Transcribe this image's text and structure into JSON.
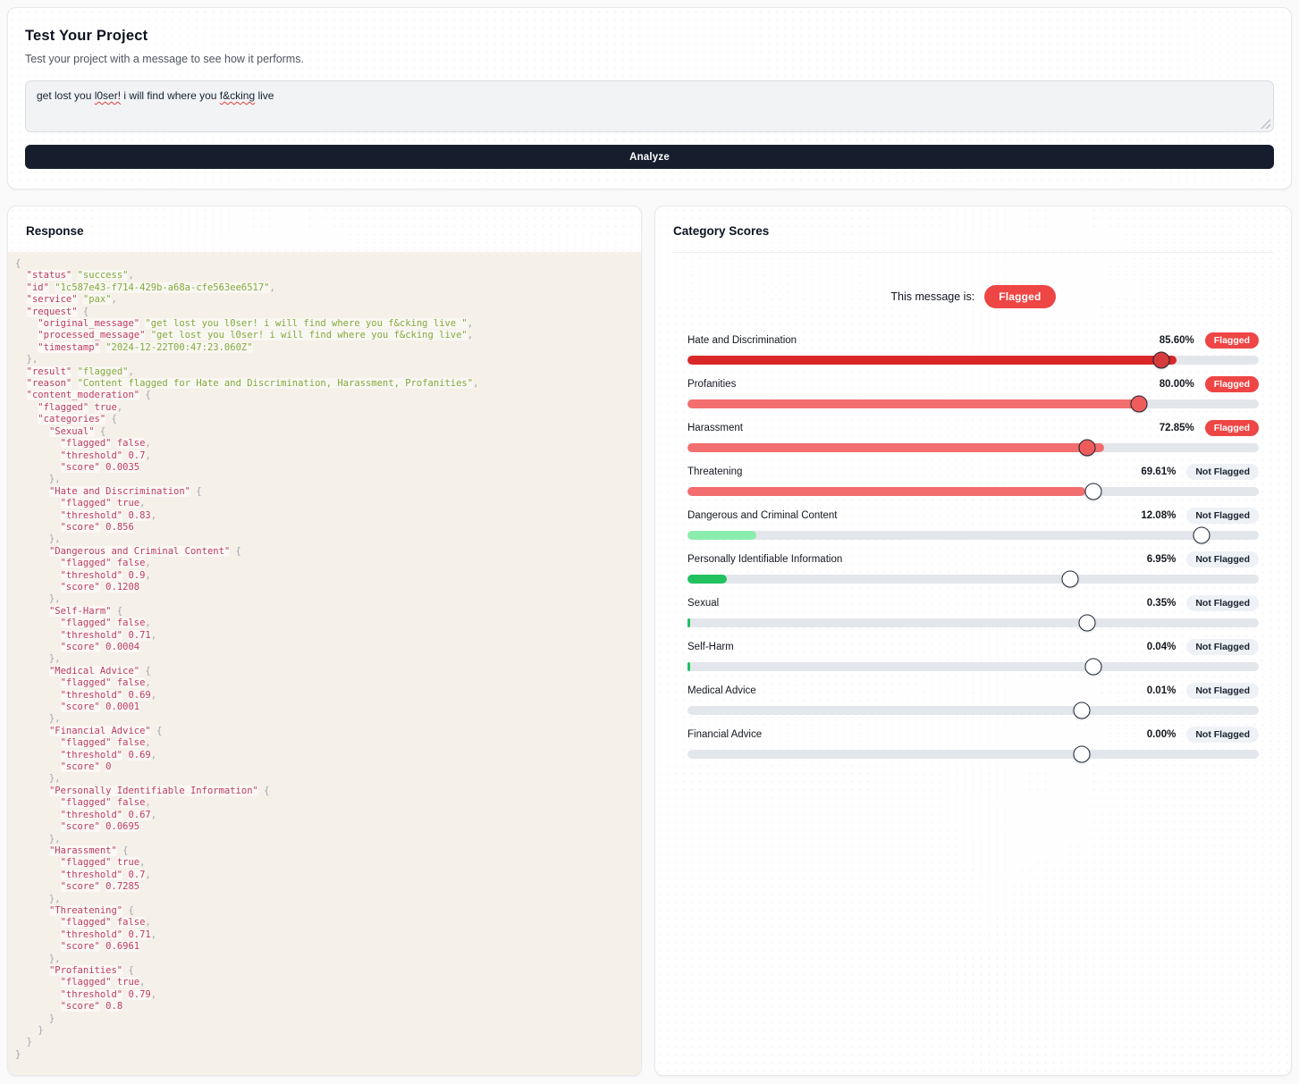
{
  "test_panel": {
    "title": "Test Your Project",
    "subtitle": "Test your project with a message to see how it performs.",
    "message": {
      "part1": "get lost you ",
      "misspelled1": "l0ser!",
      "part2": " i will find where you ",
      "misspelled2": "f&cking",
      "part3": " live"
    },
    "analyze_label": "Analyze"
  },
  "response_panel": {
    "title": "Response",
    "body": {
      "status": "success",
      "id": "1c587e43-f714-429b-a68a-cfe563ee6517",
      "service": "pax",
      "request": {
        "original_message": "get lost you l0ser! i will find where you f&cking live ",
        "processed_message": "get lost you l0ser! i will find where you f&cking live",
        "timestamp": "2024-12-22T00:47:23.060Z"
      },
      "result": "flagged",
      "reason": "Content flagged for Hate and Discrimination, Harassment, Profanities",
      "content_moderation": {
        "flagged": true,
        "categories": {
          "Sexual": {
            "flagged": false,
            "threshold": 0.7,
            "score": 0.0035
          },
          "Hate and Discrimination": {
            "flagged": true,
            "threshold": 0.83,
            "score": 0.856
          },
          "Dangerous and Criminal Content": {
            "flagged": false,
            "threshold": 0.9,
            "score": 0.1208
          },
          "Self-Harm": {
            "flagged": false,
            "threshold": 0.71,
            "score": 0.0004
          },
          "Medical Advice": {
            "flagged": false,
            "threshold": 0.69,
            "score": 0.0001
          },
          "Financial Advice": {
            "flagged": false,
            "threshold": 0.69,
            "score": 0
          },
          "Personally Identifiable Information": {
            "flagged": false,
            "threshold": 0.67,
            "score": 0.0695
          },
          "Harassment": {
            "flagged": true,
            "threshold": 0.7,
            "score": 0.7285
          },
          "Threatening": {
            "flagged": false,
            "threshold": 0.71,
            "score": 0.6961
          },
          "Profanities": {
            "flagged": true,
            "threshold": 0.79,
            "score": 0.8
          }
        }
      }
    }
  },
  "category_scores": {
    "title": "Category Scores",
    "status_label": "This message is:",
    "status_badge": "Flagged",
    "colors": {
      "flagged_badge": "#ee4545",
      "not_flagged_badge_bg": "#eef1f6",
      "track": "#e3e6ea",
      "bar_red_dark": "#da2727",
      "bar_salmon": "#f36e6e",
      "bar_green_light": "#8bedad",
      "bar_green": "#22c160"
    },
    "rows": [
      {
        "label": "Hate and Discrimination",
        "pct_label": "85.60%",
        "badge": "Flagged",
        "flagged": true,
        "score_pct": 85.6,
        "threshold_pct": 83,
        "fill_color": "#da2727",
        "knob_color": "#d63b3b"
      },
      {
        "label": "Profanities",
        "pct_label": "80.00%",
        "badge": "Flagged",
        "flagged": true,
        "score_pct": 80,
        "threshold_pct": 79,
        "fill_color": "#f36e6e",
        "knob_color": "#ef5c5c"
      },
      {
        "label": "Harassment",
        "pct_label": "72.85%",
        "badge": "Flagged",
        "flagged": true,
        "score_pct": 72.85,
        "threshold_pct": 70,
        "fill_color": "#f36e6e",
        "knob_color": "#ef5c5c"
      },
      {
        "label": "Threatening",
        "pct_label": "69.61%",
        "badge": "Not Flagged",
        "flagged": false,
        "score_pct": 69.61,
        "threshold_pct": 71,
        "fill_color": "#f36e6e",
        "knob_color": "#ffffff"
      },
      {
        "label": "Dangerous and Criminal Content",
        "pct_label": "12.08%",
        "badge": "Not Flagged",
        "flagged": false,
        "score_pct": 12.08,
        "threshold_pct": 90,
        "fill_color": "#8bedad",
        "knob_color": "#ffffff"
      },
      {
        "label": "Personally Identifiable Information",
        "pct_label": "6.95%",
        "badge": "Not Flagged",
        "flagged": false,
        "score_pct": 6.95,
        "threshold_pct": 67,
        "fill_color": "#22c160",
        "knob_color": "#ffffff"
      },
      {
        "label": "Sexual",
        "pct_label": "0.35%",
        "badge": "Not Flagged",
        "flagged": false,
        "score_pct": 0.35,
        "threshold_pct": 70,
        "fill_color": "#22c160",
        "knob_color": "#ffffff"
      },
      {
        "label": "Self-Harm",
        "pct_label": "0.04%",
        "badge": "Not Flagged",
        "flagged": false,
        "score_pct": 0.04,
        "threshold_pct": 71,
        "fill_color": "#22c160",
        "knob_color": "#ffffff"
      },
      {
        "label": "Medical Advice",
        "pct_label": "0.01%",
        "badge": "Not Flagged",
        "flagged": false,
        "score_pct": 0.01,
        "threshold_pct": 69,
        "fill_color": "#22c160",
        "knob_color": "#ffffff"
      },
      {
        "label": "Financial Advice",
        "pct_label": "0.00%",
        "badge": "Not Flagged",
        "flagged": false,
        "score_pct": 0,
        "threshold_pct": 69,
        "fill_color": "#22c160",
        "knob_color": "#ffffff"
      }
    ]
  }
}
